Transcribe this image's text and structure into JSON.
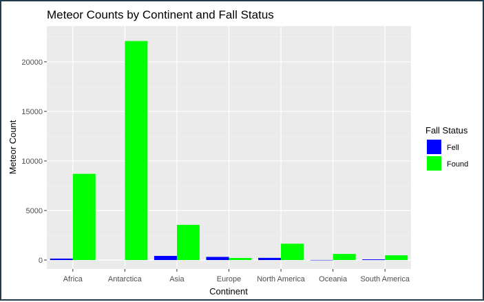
{
  "chart_data": {
    "type": "bar",
    "title": "Meteor Counts by Continent and Fall Status",
    "xlabel": "Continent",
    "ylabel": "Meteor Count",
    "categories": [
      "Africa",
      "Antarctica",
      "Asia",
      "Europe",
      "North America",
      "Oceania",
      "South America"
    ],
    "series": [
      {
        "name": "Fell",
        "color": "#0000ff",
        "values": [
          150,
          0,
          420,
          320,
          220,
          10,
          70
        ]
      },
      {
        "name": "Found",
        "color": "#00ff00",
        "values": [
          8700,
          22100,
          3550,
          210,
          1650,
          620,
          480
        ]
      }
    ],
    "ylim": [
      -900,
      23600
    ],
    "yticks": [
      0,
      5000,
      10000,
      15000,
      20000
    ],
    "grid": true,
    "panel_background": "#ebebeb",
    "legend": {
      "title": "Fall Status",
      "placement": "right"
    }
  }
}
